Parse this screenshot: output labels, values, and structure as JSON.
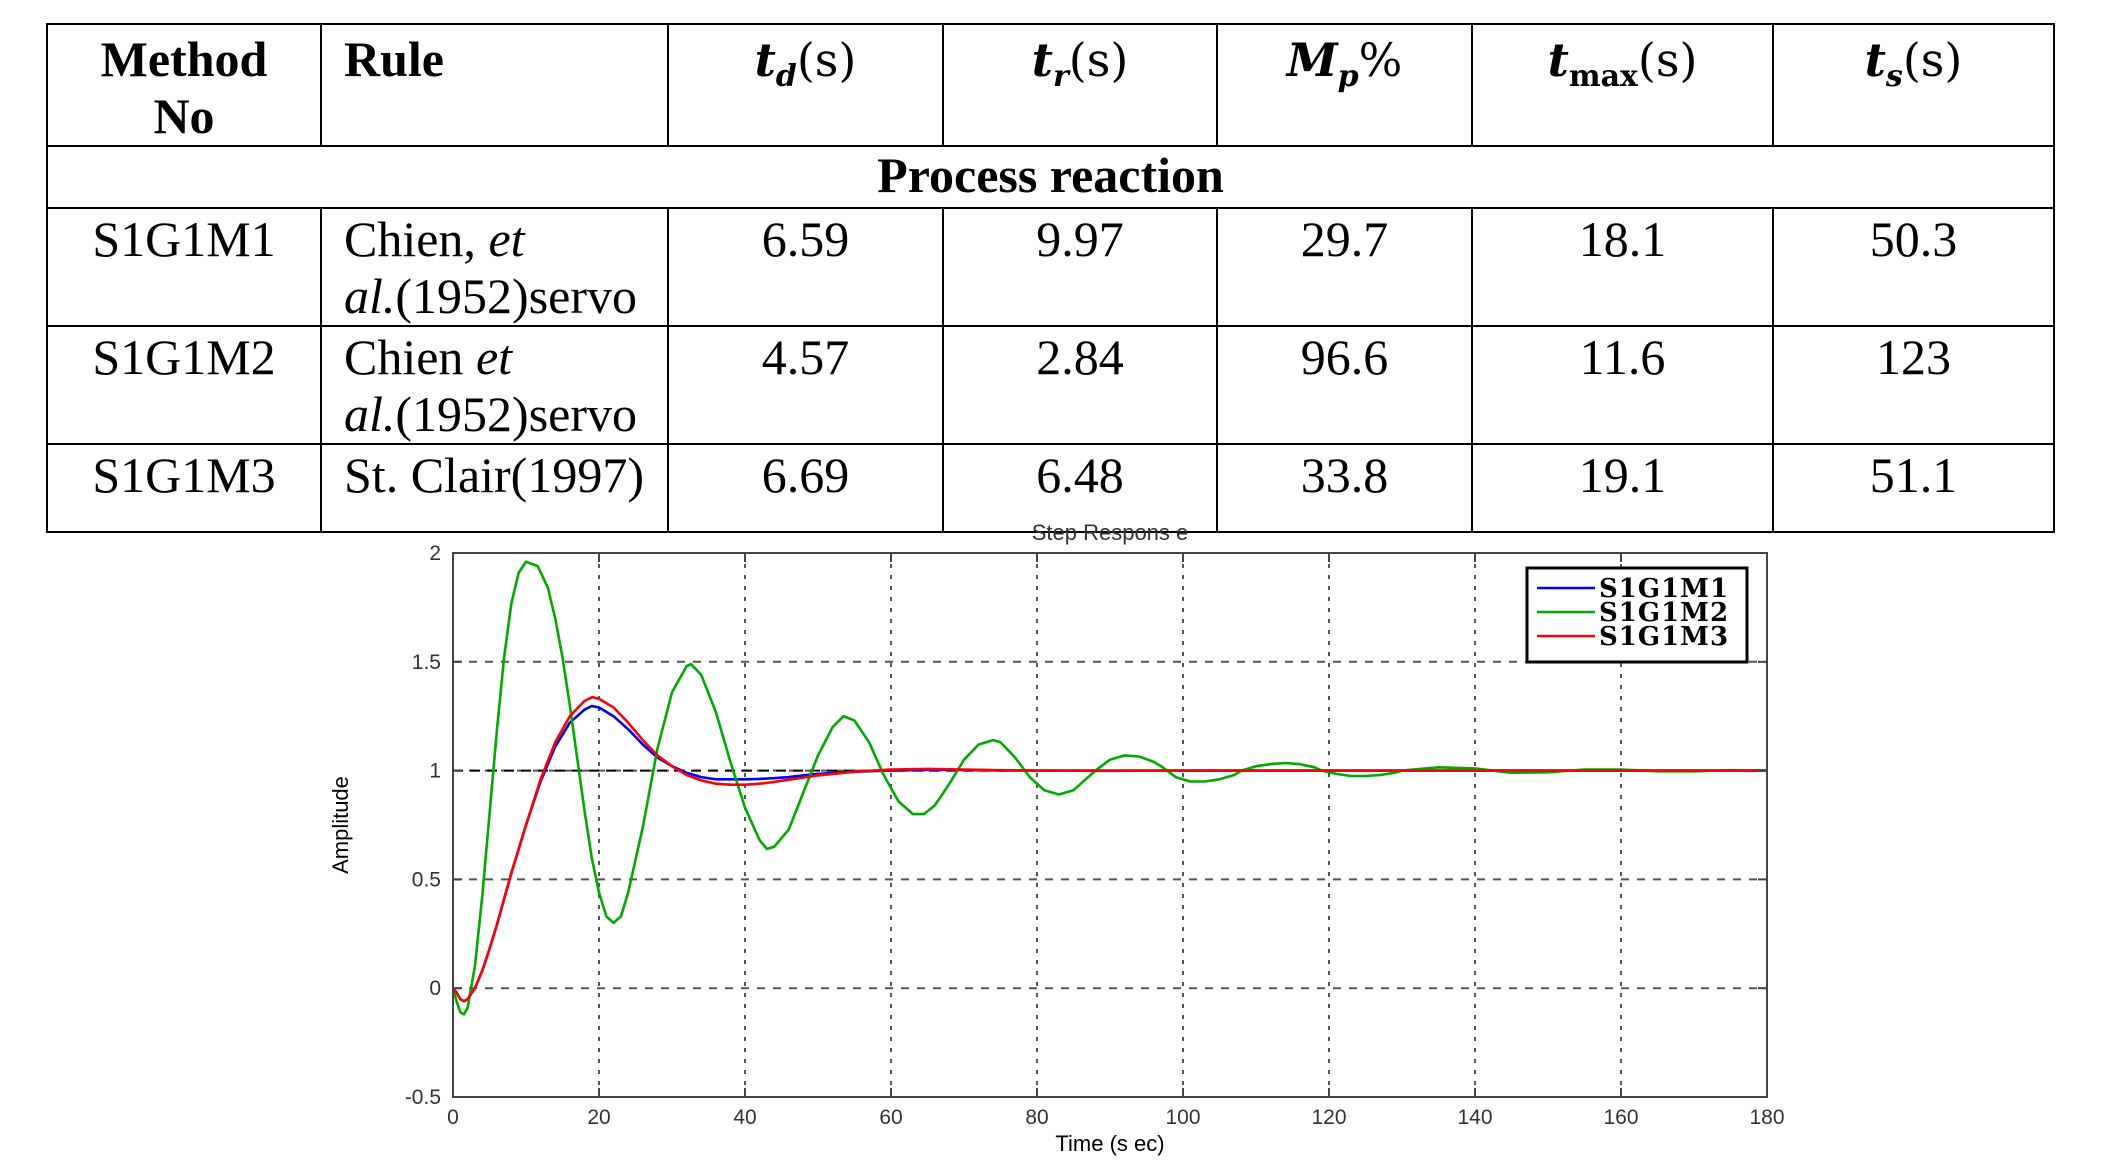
{
  "table": {
    "headers": {
      "method_line1": "Method",
      "method_line2": "No",
      "rule": "Rule",
      "td_sym": "t",
      "td_sub": "d",
      "td_unit": "(s)",
      "tr_sym": "t",
      "tr_sub": "r",
      "tr_unit": "(s)",
      "mp_sym": "M",
      "mp_sub": "p",
      "mp_unit": "%",
      "tmax_sym": "t",
      "tmax_sub": "max",
      "tmax_unit": "(s)",
      "ts_sym": "t",
      "ts_sub": "s",
      "ts_unit": "(s)"
    },
    "section_title": "Process reaction",
    "rows": [
      {
        "method": "S1G1M1",
        "rule_a": "Chien, ",
        "rule_b": "et",
        "rule_c": "al.",
        "rule_d": "(1952)servo",
        "td": "6.59",
        "tr": "9.97",
        "mp": "29.7",
        "tmax": "18.1",
        "ts": "50.3"
      },
      {
        "method": "S1G1M2",
        "rule_a": "Chien ",
        "rule_b": "et",
        "rule_c": "al.",
        "rule_d": "(1952)servo",
        "td": "4.57",
        "tr": "2.84",
        "mp": "96.6",
        "tmax": "11.6",
        "ts": "123"
      },
      {
        "method": "S1G1M3",
        "rule_a": "St. Clair(1997)",
        "td": "6.69",
        "tr": "6.48",
        "mp": "33.8",
        "tmax": "19.1",
        "ts": "51.1"
      }
    ]
  },
  "chart_data": {
    "type": "line",
    "title": "Step Respons e",
    "xlabel": "Time (s ec)",
    "ylabel": "Amplitude",
    "xlim": [
      0,
      180
    ],
    "ylim": [
      -0.5,
      2
    ],
    "xticks": [
      "0",
      "20",
      "40",
      "60",
      "80",
      "100",
      "120",
      "140",
      "160",
      "180"
    ],
    "yticks": [
      "-0.5",
      "0",
      "0.5",
      "1",
      "1.5",
      "2"
    ],
    "grid": true,
    "reference_line": 1,
    "legend_position": "top-right",
    "series": [
      {
        "name": "S1G1M1",
        "color": "#0000ff",
        "x": [
          0,
          0.5,
          1,
          1.5,
          2,
          3,
          4,
          5,
          6,
          7,
          8,
          10,
          12,
          14,
          16,
          18,
          19,
          20,
          22,
          24,
          26,
          28,
          30,
          32,
          34,
          36,
          38,
          40,
          42,
          44,
          46,
          48,
          50,
          55,
          60,
          65,
          70,
          75,
          80,
          90,
          100,
          120,
          140,
          160,
          180
        ],
        "y": [
          0,
          -0.02,
          -0.05,
          -0.06,
          -0.05,
          0.0,
          0.08,
          0.18,
          0.29,
          0.41,
          0.53,
          0.75,
          0.95,
          1.11,
          1.22,
          1.28,
          1.297,
          1.29,
          1.25,
          1.19,
          1.12,
          1.06,
          1.02,
          0.99,
          0.97,
          0.96,
          0.96,
          0.96,
          0.962,
          0.965,
          0.97,
          0.978,
          0.985,
          0.995,
          1.0,
          1.004,
          1.003,
          1.001,
          1.0,
          1.0,
          1.0,
          1.0,
          1.0,
          1.0,
          1.0
        ]
      },
      {
        "name": "S1G1M2",
        "color": "#00aa00",
        "x": [
          0,
          0.5,
          1,
          1.5,
          2,
          3,
          4,
          5,
          6,
          7,
          8,
          9,
          10,
          11.6,
          13,
          14,
          15,
          16,
          17,
          18,
          19,
          20,
          21,
          22,
          23,
          24,
          26,
          28,
          30,
          32,
          32.6,
          34,
          36,
          38,
          40,
          42,
          43,
          44,
          46,
          48,
          50,
          52,
          53.5,
          55,
          57,
          59,
          61,
          63,
          64.5,
          66,
          68,
          70,
          72,
          74,
          75,
          77,
          79,
          81,
          83,
          85,
          86,
          88,
          90,
          92,
          94,
          96,
          97,
          99,
          101,
          103,
          105,
          107,
          108,
          110,
          112,
          114,
          116,
          118,
          119,
          121,
          123,
          125,
          127,
          129,
          130,
          135,
          140,
          145,
          150,
          155,
          160,
          165,
          170,
          175,
          180
        ],
        "y": [
          0,
          -0.06,
          -0.11,
          -0.12,
          -0.09,
          0.1,
          0.42,
          0.8,
          1.18,
          1.52,
          1.77,
          1.91,
          1.96,
          1.94,
          1.84,
          1.7,
          1.52,
          1.3,
          1.06,
          0.82,
          0.6,
          0.44,
          0.33,
          0.3,
          0.33,
          0.44,
          0.74,
          1.1,
          1.36,
          1.48,
          1.49,
          1.44,
          1.27,
          1.04,
          0.83,
          0.68,
          0.64,
          0.65,
          0.73,
          0.9,
          1.07,
          1.2,
          1.25,
          1.23,
          1.13,
          0.98,
          0.86,
          0.8,
          0.8,
          0.84,
          0.94,
          1.05,
          1.12,
          1.14,
          1.13,
          1.06,
          0.97,
          0.91,
          0.89,
          0.91,
          0.94,
          1.0,
          1.05,
          1.07,
          1.065,
          1.04,
          1.02,
          0.97,
          0.95,
          0.95,
          0.96,
          0.98,
          1.0,
          1.02,
          1.03,
          1.035,
          1.03,
          1.015,
          1.0,
          0.985,
          0.975,
          0.975,
          0.98,
          0.99,
          1.0,
          1.015,
          1.01,
          0.99,
          0.992,
          1.005,
          1.005,
          0.997,
          0.997,
          1.002,
          1.0
        ]
      },
      {
        "name": "S1G1M3",
        "color": "#ff0000",
        "x": [
          0,
          0.5,
          1,
          1.5,
          2,
          3,
          4,
          5,
          6,
          7,
          8,
          10,
          12,
          14,
          16,
          18,
          19.1,
          20,
          22,
          24,
          26,
          28,
          30,
          32,
          34,
          36,
          38,
          40,
          42,
          44,
          46,
          48,
          50,
          55,
          60,
          65,
          70,
          75,
          80,
          90,
          100,
          120,
          140,
          160,
          180
        ],
        "y": [
          0,
          -0.02,
          -0.05,
          -0.06,
          -0.05,
          0.0,
          0.08,
          0.18,
          0.29,
          0.41,
          0.53,
          0.75,
          0.96,
          1.13,
          1.25,
          1.32,
          1.338,
          1.33,
          1.29,
          1.22,
          1.14,
          1.07,
          1.02,
          0.98,
          0.955,
          0.94,
          0.935,
          0.935,
          0.94,
          0.948,
          0.958,
          0.968,
          0.978,
          0.995,
          1.005,
          1.008,
          1.005,
          1.002,
          1.0,
          0.999,
          1.0,
          1.0,
          1.0,
          1.0,
          1.0
        ]
      }
    ]
  }
}
